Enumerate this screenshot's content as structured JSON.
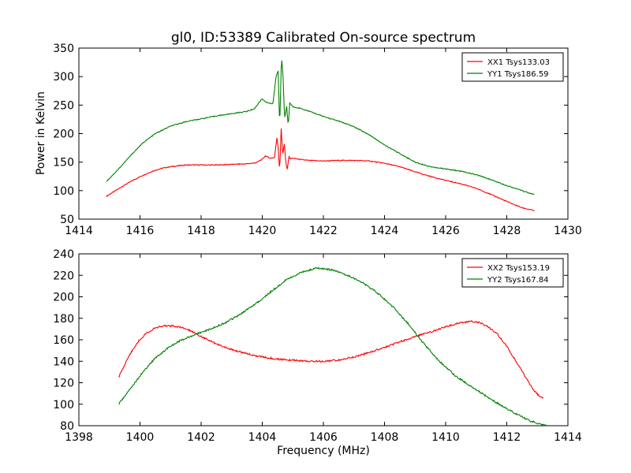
{
  "figure": {
    "title": "gl0, ID:53389 Calibrated On-source spectrum",
    "ylabel_top": "Power in Kelvin",
    "xlabel_bottom": "Frequency (MHz)"
  },
  "chart_data": [
    {
      "type": "line",
      "title": "gl0, ID:53389 Calibrated On-source spectrum",
      "xlabel": "",
      "ylabel": "Power in Kelvin",
      "xlim": [
        1414,
        1430
      ],
      "ylim": [
        50,
        350
      ],
      "xticks": [
        1414,
        1416,
        1418,
        1420,
        1422,
        1424,
        1426,
        1428,
        1430
      ],
      "yticks": [
        50,
        100,
        150,
        200,
        250,
        300,
        350
      ],
      "grid": false,
      "legend_position": "top-right",
      "series": [
        {
          "name": "XX1 Tsys133.03",
          "color": "#ff0000",
          "x": [
            1414.9,
            1415.2,
            1415.5,
            1415.8,
            1416.1,
            1416.4,
            1416.7,
            1417.0,
            1417.5,
            1418.0,
            1418.5,
            1419.0,
            1419.5,
            1419.8,
            1420.0,
            1420.1,
            1420.25,
            1420.4,
            1420.48,
            1420.52,
            1420.57,
            1420.62,
            1420.67,
            1420.72,
            1420.77,
            1420.82,
            1420.87,
            1420.92,
            1421.0,
            1421.2,
            1421.5,
            1422.0,
            1422.5,
            1423.0,
            1423.5,
            1424.0,
            1424.5,
            1425.0,
            1425.5,
            1426.0,
            1426.5,
            1427.0,
            1427.5,
            1428.0,
            1428.5,
            1428.9
          ],
          "y": [
            90,
            100,
            110,
            119,
            127,
            134,
            139,
            142,
            145,
            145,
            145,
            146,
            147,
            149,
            155,
            161,
            157,
            158,
            193,
            175,
            135,
            209,
            162,
            182,
            150,
            137,
            160,
            156,
            157,
            155,
            153,
            152,
            153,
            153,
            152,
            148,
            142,
            133,
            125,
            118,
            112,
            104,
            93,
            81,
            70,
            65
          ]
        },
        {
          "name": "YY1 Tsys186.59",
          "color": "#008000",
          "x": [
            1414.9,
            1415.3,
            1415.7,
            1416.1,
            1416.5,
            1417.0,
            1417.5,
            1418.0,
            1418.5,
            1419.0,
            1419.5,
            1419.75,
            1419.9,
            1420.0,
            1420.1,
            1420.2,
            1420.35,
            1420.45,
            1420.52,
            1420.57,
            1420.63,
            1420.68,
            1420.73,
            1420.8,
            1420.85,
            1420.9,
            1421.0,
            1421.2,
            1421.5,
            1422.0,
            1422.5,
            1423.0,
            1423.5,
            1424.0,
            1424.5,
            1425.0,
            1425.5,
            1426.0,
            1426.5,
            1427.0,
            1427.5,
            1428.0,
            1428.5,
            1428.9
          ],
          "y": [
            116,
            138,
            162,
            184,
            200,
            213,
            221,
            226,
            231,
            235,
            239,
            244,
            255,
            261,
            256,
            254,
            252,
            300,
            310,
            212,
            336,
            300,
            226,
            248,
            213,
            254,
            247,
            245,
            240,
            230,
            222,
            212,
            198,
            180,
            165,
            150,
            142,
            138,
            134,
            128,
            119,
            109,
            100,
            93
          ]
        }
      ]
    },
    {
      "type": "line",
      "title": "",
      "xlabel": "Frequency (MHz)",
      "ylabel": "",
      "xlim": [
        1398,
        1414
      ],
      "ylim": [
        80,
        240
      ],
      "xticks": [
        1398,
        1400,
        1402,
        1404,
        1406,
        1408,
        1410,
        1412,
        1414
      ],
      "yticks": [
        80,
        100,
        120,
        140,
        160,
        180,
        200,
        220,
        240
      ],
      "grid": false,
      "legend_position": "top-right",
      "series": [
        {
          "name": "XX2 Tsys153.19",
          "color": "#ff0000",
          "x": [
            1399.3,
            1399.6,
            1399.9,
            1400.2,
            1400.5,
            1400.8,
            1401.1,
            1401.4,
            1401.7,
            1402.0,
            1402.5,
            1403.0,
            1403.5,
            1404.0,
            1404.5,
            1405.0,
            1405.5,
            1406.0,
            1406.5,
            1407.0,
            1407.5,
            1408.0,
            1408.5,
            1409.0,
            1409.5,
            1410.0,
            1410.5,
            1410.8,
            1411.1,
            1411.4,
            1411.7,
            1412.0,
            1412.3,
            1412.6,
            1412.9,
            1413.2
          ],
          "y": [
            125,
            143,
            157,
            166,
            171,
            173,
            173,
            171,
            168,
            163,
            156,
            151,
            147,
            144,
            142,
            141,
            140,
            140,
            141,
            144,
            148,
            153,
            158,
            163,
            167,
            172,
            176,
            177,
            176,
            172,
            165,
            154,
            140,
            126,
            112,
            105
          ]
        },
        {
          "name": "YY2 Tsys167.84",
          "color": "#008000",
          "x": [
            1399.3,
            1399.7,
            1400.1,
            1400.5,
            1400.9,
            1401.3,
            1401.8,
            1402.3,
            1402.8,
            1403.3,
            1403.8,
            1404.3,
            1404.8,
            1405.3,
            1405.8,
            1406.3,
            1406.8,
            1407.3,
            1407.8,
            1408.3,
            1408.8,
            1409.3,
            1409.8,
            1410.3,
            1410.8,
            1411.3,
            1411.8,
            1412.3,
            1412.8,
            1413.3
          ],
          "y": [
            100,
            115,
            130,
            143,
            152,
            159,
            165,
            170,
            176,
            184,
            194,
            205,
            216,
            223,
            227,
            225,
            220,
            213,
            203,
            190,
            174,
            156,
            140,
            127,
            117,
            108,
            99,
            91,
            84,
            80
          ]
        }
      ]
    }
  ]
}
